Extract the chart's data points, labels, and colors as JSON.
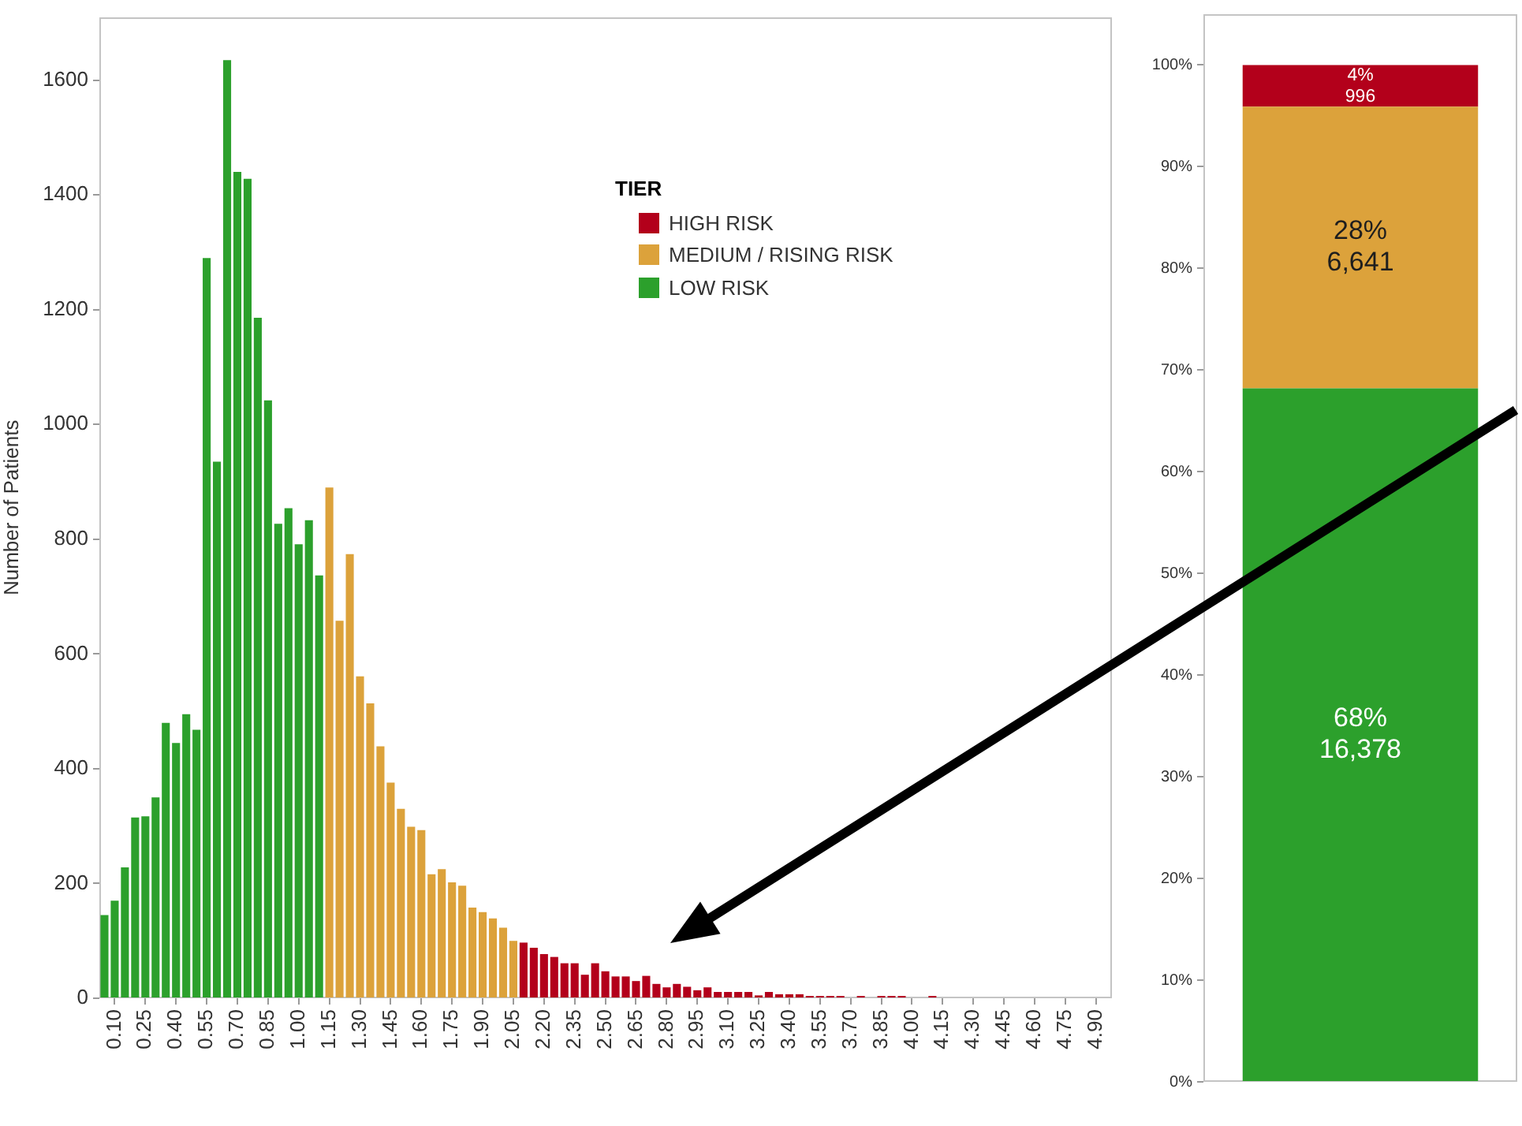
{
  "chart_data": [
    {
      "type": "bar",
      "ylabel": "Number of Patients",
      "legend": "top",
      "legend_title": "TIER",
      "categories": [
        null,
        "0.10",
        null,
        null,
        "0.25",
        null,
        null,
        "0.40",
        null,
        null,
        "0.55",
        null,
        null,
        "0.70",
        null,
        null,
        "0.85",
        null,
        null,
        "1.00",
        null,
        null,
        "1.15",
        null,
        null,
        "1.30",
        null,
        null,
        "1.45",
        null,
        null,
        "1.60",
        null,
        null,
        "1.75",
        null,
        null,
        "1.90",
        null,
        null,
        "2.05",
        null,
        null,
        "2.20",
        null,
        null,
        "2.35",
        null,
        null,
        "2.50",
        null,
        null,
        "2.65",
        null,
        null,
        "2.80",
        null,
        null,
        "2.95",
        null,
        null,
        "3.10",
        null,
        null,
        "3.25",
        null,
        null,
        "3.40",
        null,
        null,
        "3.55",
        null,
        null,
        "3.70",
        null,
        null,
        "3.85",
        null,
        null,
        "4.00",
        null,
        null,
        "4.15",
        null,
        null,
        "4.30",
        null,
        null,
        "4.45",
        null,
        null,
        "4.60",
        null,
        null,
        "4.75",
        null,
        null,
        "4.90",
        null
      ],
      "series": [
        {
          "name": "HIGH RISK",
          "color": "#b3001b",
          "values": [
            null,
            null,
            null,
            null,
            null,
            null,
            null,
            null,
            null,
            null,
            null,
            null,
            null,
            null,
            null,
            null,
            null,
            null,
            null,
            null,
            null,
            null,
            null,
            null,
            null,
            null,
            null,
            null,
            null,
            null,
            null,
            null,
            null,
            null,
            null,
            null,
            null,
            null,
            null,
            null,
            null,
            97,
            88,
            77,
            72,
            61,
            61,
            41,
            61,
            47,
            38,
            38,
            30,
            39,
            25,
            19,
            25,
            20,
            14,
            19,
            11,
            11,
            11,
            11,
            5,
            11,
            7,
            7,
            7,
            4,
            4,
            4,
            4,
            null,
            4,
            null,
            4,
            4,
            4,
            null,
            null,
            4,
            null,
            null,
            null,
            null,
            null,
            null,
            null,
            null,
            null,
            null,
            null,
            null,
            null,
            null,
            null,
            null,
            null
          ]
        },
        {
          "name": "MEDIUM / RISING RISK",
          "color": "#dca23b",
          "values": [
            null,
            null,
            null,
            null,
            null,
            null,
            null,
            null,
            null,
            null,
            null,
            null,
            null,
            null,
            null,
            null,
            null,
            null,
            null,
            null,
            null,
            null,
            890,
            658,
            774,
            561,
            514,
            439,
            376,
            330,
            299,
            293,
            216,
            225,
            202,
            196,
            158,
            150,
            139,
            123,
            100,
            null,
            null,
            null,
            null,
            null,
            null,
            null,
            null,
            null,
            null,
            null,
            null,
            null,
            null,
            null,
            null,
            null,
            null,
            null,
            null,
            null,
            null,
            null,
            null,
            null,
            null,
            null,
            null,
            null,
            null,
            null,
            null,
            null,
            null,
            null,
            null,
            null,
            null,
            null,
            null,
            null,
            null,
            null,
            null,
            null,
            null,
            null,
            null,
            null,
            null,
            null,
            null,
            null,
            null,
            null,
            null,
            null,
            null
          ]
        },
        {
          "name": "LOW RISK",
          "color": "#2ca02c",
          "values": [
            145,
            170,
            228,
            315,
            317,
            350,
            480,
            445,
            495,
            468,
            1290,
            935,
            1635,
            1440,
            1428,
            1186,
            1042,
            827,
            854,
            791,
            833,
            737,
            null,
            null,
            null,
            null,
            null,
            null,
            null,
            null,
            null,
            null,
            null,
            null,
            null,
            null,
            null,
            null,
            null,
            null,
            null,
            null,
            null,
            null,
            null,
            null,
            null,
            null,
            null,
            null,
            null,
            null,
            null,
            null,
            null,
            null,
            null,
            null,
            null,
            null,
            null,
            null,
            null,
            null,
            null,
            null,
            null,
            null,
            null,
            null,
            null,
            null,
            null,
            null,
            null,
            null,
            null,
            null,
            null,
            null,
            null,
            null,
            null,
            null,
            null,
            null,
            null,
            null,
            null,
            null,
            null,
            null,
            null,
            null,
            null,
            null,
            null,
            null,
            null
          ]
        }
      ],
      "ylim": [
        0,
        1710
      ],
      "yticks": [
        0,
        200,
        400,
        600,
        800,
        1000,
        1200,
        1400,
        1600
      ]
    },
    {
      "type": "bar",
      "stacked": true,
      "tick_labels": "y",
      "categories": [
        null
      ],
      "series": [
        {
          "color": "#2ca02c",
          "values": [
            68.2
          ],
          "value_labels": [
            "68%\n16,378"
          ]
        },
        {
          "color": "#dca23b",
          "values": [
            27.7
          ],
          "value_labels": [
            "28%\n6,641"
          ]
        },
        {
          "color": "#b3001b",
          "values": [
            4.1
          ],
          "value_labels": [
            "4%\n996"
          ]
        }
      ],
      "ylim": [
        0,
        105
      ],
      "yticks": [
        {
          "value": 0,
          "label": "0%"
        },
        {
          "value": 10,
          "label": "10%"
        },
        {
          "value": 20,
          "label": "20%"
        },
        {
          "value": 30,
          "label": "30%"
        },
        {
          "value": 40,
          "label": "40%"
        },
        {
          "value": 50,
          "label": "50%"
        },
        {
          "value": 60,
          "label": "60%"
        },
        {
          "value": 70,
          "label": "70%"
        },
        {
          "value": 80,
          "label": "80%"
        },
        {
          "value": 90,
          "label": "90%"
        },
        {
          "value": 100,
          "label": "100%"
        }
      ]
    }
  ]
}
